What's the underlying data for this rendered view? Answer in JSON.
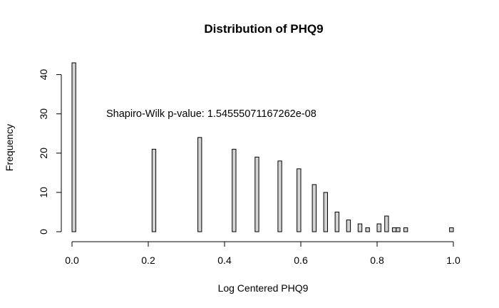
{
  "chart_data": {
    "type": "bar",
    "title": "Distribution of PHQ9",
    "xlabel": "Log Centered PHQ9",
    "ylabel": "Frequency",
    "xlim": [
      0,
      1
    ],
    "ylim": [
      0,
      43
    ],
    "x_ticks": [
      0.0,
      0.2,
      0.4,
      0.6,
      0.8,
      1.0
    ],
    "x_tick_labels": [
      "0.0",
      "0.2",
      "0.4",
      "0.6",
      "0.8",
      "1.0"
    ],
    "y_ticks": [
      0,
      10,
      20,
      30,
      40
    ],
    "y_tick_labels": [
      "0",
      "10",
      "20",
      "30",
      "40"
    ],
    "annotation": "Shapiro-Wilk p-value:  1.54555071167262e-08",
    "bin_width": 0.01,
    "bins": [
      {
        "x0": 0.0,
        "count": 43
      },
      {
        "x0": 0.21,
        "count": 21
      },
      {
        "x0": 0.33,
        "count": 24
      },
      {
        "x0": 0.42,
        "count": 21
      },
      {
        "x0": 0.48,
        "count": 19
      },
      {
        "x0": 0.54,
        "count": 18
      },
      {
        "x0": 0.59,
        "count": 16
      },
      {
        "x0": 0.63,
        "count": 12
      },
      {
        "x0": 0.66,
        "count": 10
      },
      {
        "x0": 0.69,
        "count": 5
      },
      {
        "x0": 0.72,
        "count": 3
      },
      {
        "x0": 0.75,
        "count": 2
      },
      {
        "x0": 0.77,
        "count": 1
      },
      {
        "x0": 0.8,
        "count": 2
      },
      {
        "x0": 0.82,
        "count": 4
      },
      {
        "x0": 0.84,
        "count": 1
      },
      {
        "x0": 0.85,
        "count": 1
      },
      {
        "x0": 0.87,
        "count": 1
      },
      {
        "x0": 0.99,
        "count": 1
      }
    ],
    "grid": false,
    "colors": {
      "bar_fill": "#d3d3d3",
      "bar_stroke": "#000000"
    }
  }
}
